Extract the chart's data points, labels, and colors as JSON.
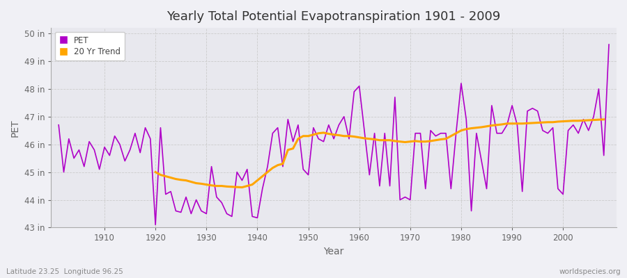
{
  "title": "Yearly Total Potential Evapotranspiration 1901 - 2009",
  "xlabel": "Year",
  "ylabel": "PET",
  "x_label_bottom": "Latitude 23.25  Longitude 96.25",
  "x_label_right": "worldspecies.org",
  "legend_labels": [
    "PET",
    "20 Yr Trend"
  ],
  "pet_color": "#b000c8",
  "trend_color": "#ffa500",
  "bg_color": "#f0f0f5",
  "plot_bg_color": "#e8e8ee",
  "ylim": [
    43,
    50.2
  ],
  "yticks": [
    43,
    44,
    45,
    46,
    47,
    48,
    49,
    50
  ],
  "ytick_labels": [
    "43 in",
    "44 in",
    "45 in",
    "46 in",
    "47 in",
    "48 in",
    "49 in",
    "50 in"
  ],
  "years": [
    1901,
    1902,
    1903,
    1904,
    1905,
    1906,
    1907,
    1908,
    1909,
    1910,
    1911,
    1912,
    1913,
    1914,
    1915,
    1916,
    1917,
    1918,
    1919,
    1920,
    1921,
    1922,
    1923,
    1924,
    1925,
    1926,
    1927,
    1928,
    1929,
    1930,
    1931,
    1932,
    1933,
    1934,
    1935,
    1936,
    1937,
    1938,
    1939,
    1940,
    1941,
    1942,
    1943,
    1944,
    1945,
    1946,
    1947,
    1948,
    1949,
    1950,
    1951,
    1952,
    1953,
    1954,
    1955,
    1956,
    1957,
    1958,
    1959,
    1960,
    1961,
    1962,
    1963,
    1964,
    1965,
    1966,
    1967,
    1968,
    1969,
    1970,
    1971,
    1972,
    1973,
    1974,
    1975,
    1976,
    1977,
    1978,
    1979,
    1980,
    1981,
    1982,
    1983,
    1984,
    1985,
    1986,
    1987,
    1988,
    1989,
    1990,
    1991,
    1992,
    1993,
    1994,
    1995,
    1996,
    1997,
    1998,
    1999,
    2000,
    2001,
    2002,
    2003,
    2004,
    2005,
    2006,
    2007,
    2008,
    2009
  ],
  "pet_values": [
    46.7,
    45.0,
    46.2,
    45.5,
    45.8,
    45.2,
    46.1,
    45.8,
    45.1,
    45.9,
    45.6,
    46.3,
    46.0,
    45.4,
    45.8,
    46.4,
    45.7,
    46.6,
    46.2,
    43.1,
    46.6,
    44.2,
    44.3,
    43.6,
    43.55,
    44.1,
    43.5,
    44.0,
    43.6,
    43.5,
    45.2,
    44.1,
    43.9,
    43.5,
    43.4,
    45.0,
    44.7,
    45.1,
    43.4,
    43.35,
    44.4,
    45.2,
    46.4,
    46.6,
    45.2,
    46.9,
    46.1,
    46.7,
    45.1,
    44.9,
    46.6,
    46.2,
    46.1,
    46.7,
    46.2,
    46.7,
    47.0,
    46.2,
    47.9,
    48.1,
    46.5,
    44.9,
    46.4,
    44.5,
    46.4,
    44.5,
    47.7,
    44.0,
    44.1,
    44.0,
    46.4,
    46.4,
    44.4,
    46.5,
    46.3,
    46.4,
    46.4,
    44.4,
    46.4,
    48.2,
    46.9,
    43.6,
    46.4,
    45.4,
    44.4,
    47.4,
    46.4,
    46.4,
    46.7,
    47.4,
    46.7,
    44.3,
    47.2,
    47.3,
    47.2,
    46.5,
    46.4,
    46.6,
    44.4,
    44.2,
    46.5,
    46.7,
    46.4,
    46.9,
    46.5,
    47.0,
    48.0,
    45.6,
    49.6
  ],
  "trend_values": [
    null,
    null,
    null,
    null,
    null,
    null,
    null,
    null,
    null,
    null,
    null,
    null,
    null,
    null,
    null,
    null,
    null,
    null,
    null,
    45.0,
    44.9,
    44.85,
    44.8,
    44.75,
    44.72,
    44.7,
    44.65,
    44.6,
    44.58,
    44.55,
    44.52,
    44.5,
    44.5,
    44.48,
    44.47,
    44.46,
    44.45,
    44.5,
    44.55,
    44.7,
    44.85,
    45.0,
    45.15,
    45.25,
    45.3,
    45.8,
    45.85,
    46.2,
    46.3,
    46.3,
    46.35,
    46.4,
    46.42,
    46.38,
    46.35,
    46.33,
    46.3,
    46.3,
    46.28,
    46.25,
    46.22,
    46.2,
    46.18,
    46.15,
    46.15,
    46.15,
    46.12,
    46.1,
    46.08,
    46.1,
    46.12,
    46.1,
    46.1,
    46.12,
    46.15,
    46.18,
    46.2,
    46.3,
    46.4,
    46.5,
    46.55,
    46.58,
    46.6,
    46.62,
    46.65,
    46.68,
    46.7,
    46.72,
    46.75,
    46.75,
    46.75,
    46.75,
    46.76,
    46.77,
    46.78,
    46.79,
    46.8,
    46.8,
    46.82,
    46.83,
    46.84,
    46.85,
    46.85,
    46.86,
    46.87,
    46.88,
    46.89,
    46.9
  ]
}
